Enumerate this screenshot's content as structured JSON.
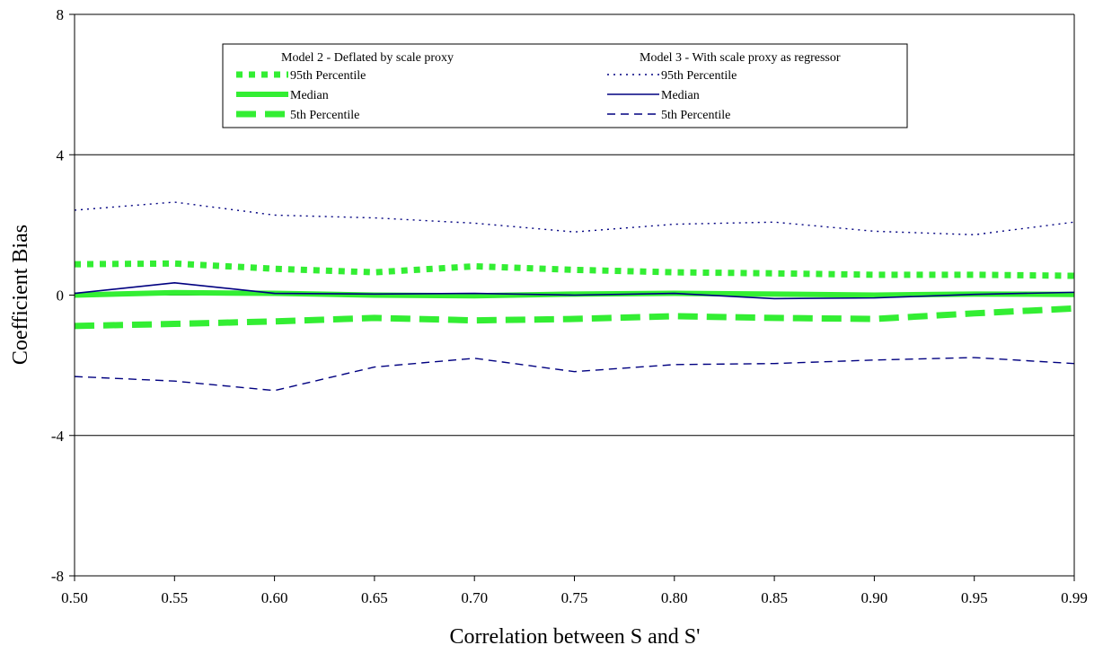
{
  "chart_data": {
    "type": "line",
    "title": "",
    "xlabel": "Correlation between S and S'",
    "ylabel": "Coefficient Bias",
    "x": [
      0.5,
      0.55,
      0.6,
      0.65,
      0.7,
      0.75,
      0.8,
      0.85,
      0.9,
      0.95,
      0.99
    ],
    "x_tick_labels": [
      "0.50",
      "0.55",
      "0.60",
      "0.65",
      "0.70",
      "0.75",
      "0.80",
      "0.85",
      "0.90",
      "0.95",
      "0.99"
    ],
    "ylim": [
      -8,
      8
    ],
    "y_ticks": [
      -8,
      -4,
      0,
      4,
      8
    ],
    "y_tick_labels": [
      "-8",
      "-4",
      "0",
      "4",
      "8"
    ],
    "grid": "horizontal major gridlines at -4, 0, 4",
    "legend_placement": "top-center",
    "legend_groups": [
      {
        "header": "Model 2 - Deflated by scale proxy",
        "series_indices": [
          0,
          1,
          2
        ]
      },
      {
        "header": "Model 3 - With scale proxy as regressor",
        "series_indices": [
          3,
          4,
          5
        ]
      }
    ],
    "series": [
      {
        "name": "95th Percentile",
        "group": "Model 2 - Deflated by scale proxy",
        "color": "#33ee33",
        "style": "dotted-thick",
        "values": [
          0.88,
          0.9,
          0.75,
          0.65,
          0.82,
          0.72,
          0.65,
          0.62,
          0.58,
          0.58,
          0.55
        ]
      },
      {
        "name": "Median",
        "group": "Model 2 - Deflated by scale proxy",
        "color": "#33ee33",
        "style": "solid-thick",
        "values": [
          0.0,
          0.07,
          0.05,
          0.0,
          -0.02,
          0.03,
          0.05,
          0.03,
          0.0,
          0.03,
          0.02
        ]
      },
      {
        "name": "5th Percentile",
        "group": "Model 2 - Deflated by scale proxy",
        "color": "#33ee33",
        "style": "dashed-thick",
        "values": [
          -0.88,
          -0.82,
          -0.75,
          -0.65,
          -0.72,
          -0.68,
          -0.6,
          -0.65,
          -0.68,
          -0.52,
          -0.38
        ]
      },
      {
        "name": "95th Percentile",
        "group": "Model 3 - With scale proxy as regressor",
        "color": "#000080",
        "style": "dotted",
        "values": [
          2.42,
          2.65,
          2.28,
          2.2,
          2.05,
          1.8,
          2.02,
          2.08,
          1.82,
          1.72,
          2.08
        ]
      },
      {
        "name": "Median",
        "group": "Model 3 - With scale proxy as regressor",
        "color": "#000080",
        "style": "solid",
        "values": [
          0.05,
          0.35,
          0.05,
          0.03,
          0.05,
          0.0,
          0.05,
          -0.1,
          -0.08,
          0.02,
          0.08
        ]
      },
      {
        "name": "5th Percentile",
        "group": "Model 3 - With scale proxy as regressor",
        "color": "#000080",
        "style": "dashed",
        "values": [
          -2.32,
          -2.45,
          -2.72,
          -2.05,
          -1.8,
          -2.18,
          -1.98,
          -1.95,
          -1.85,
          -1.78,
          -1.95
        ]
      }
    ]
  }
}
